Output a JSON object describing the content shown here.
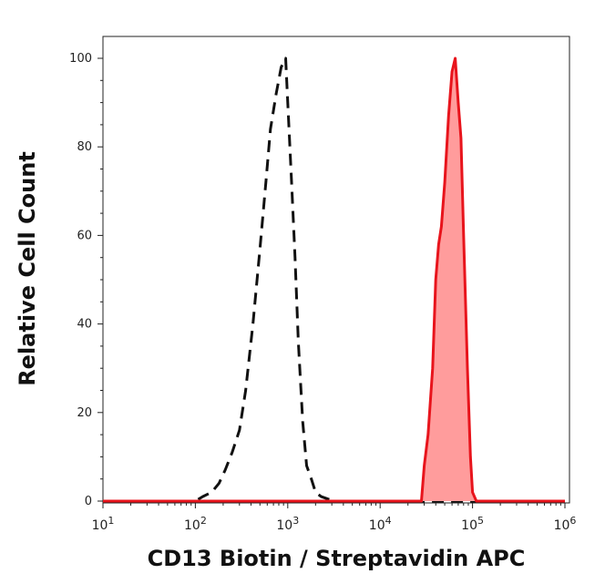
{
  "chart_data": {
    "type": "area",
    "xlabel": "CD13 Biotin / Streptavidin APC",
    "ylabel": "Relative Cell Count",
    "x_scale": "log",
    "xlim": [
      10,
      1000000
    ],
    "ylim": [
      0,
      100
    ],
    "x_ticks": [
      {
        "value": 10,
        "base": "10",
        "exp": "1"
      },
      {
        "value": 100,
        "base": "10",
        "exp": "2"
      },
      {
        "value": 1000,
        "base": "10",
        "exp": "3"
      },
      {
        "value": 10000,
        "base": "10",
        "exp": "4"
      },
      {
        "value": 100000,
        "base": "10",
        "exp": "5"
      },
      {
        "value": 1000000,
        "base": "10",
        "exp": "6"
      }
    ],
    "y_ticks": [
      {
        "value": 0,
        "label": "0"
      },
      {
        "value": 20,
        "label": "20"
      },
      {
        "value": 40,
        "label": "40"
      },
      {
        "value": 60,
        "label": "60"
      },
      {
        "value": 80,
        "label": "80"
      },
      {
        "value": 100,
        "label": "100"
      }
    ],
    "grid": false,
    "legend": "none",
    "series": [
      {
        "style": "dashed",
        "color": "#111111",
        "filled": false,
        "x": [
          10,
          100,
          120,
          150,
          180,
          210,
          250,
          300,
          350,
          420,
          500,
          580,
          650,
          750,
          850,
          950,
          1000,
          1100,
          1200,
          1300,
          1450,
          1600,
          1800,
          2000,
          2300,
          2700,
          3200,
          4000,
          1000000
        ],
        "y": [
          0,
          0,
          1,
          2,
          4,
          7,
          11,
          16,
          25,
          40,
          57,
          72,
          84,
          92,
          98,
          100,
          90,
          72,
          55,
          36,
          18,
          8,
          5,
          2,
          1,
          0.5,
          0,
          0,
          0
        ]
      },
      {
        "style": "solid",
        "color": "#e8141c",
        "fill": "#ff9c9c",
        "filled": true,
        "x": [
          10,
          28000,
          30000,
          33000,
          37000,
          40000,
          43000,
          46000,
          50000,
          55000,
          60000,
          65000,
          70000,
          75000,
          80000,
          88000,
          95000,
          100000,
          110000,
          1000000
        ],
        "y": [
          0,
          0,
          8,
          15,
          30,
          50,
          58,
          62,
          72,
          87,
          97,
          100,
          90,
          82,
          60,
          30,
          10,
          2,
          0,
          0
        ]
      }
    ]
  }
}
